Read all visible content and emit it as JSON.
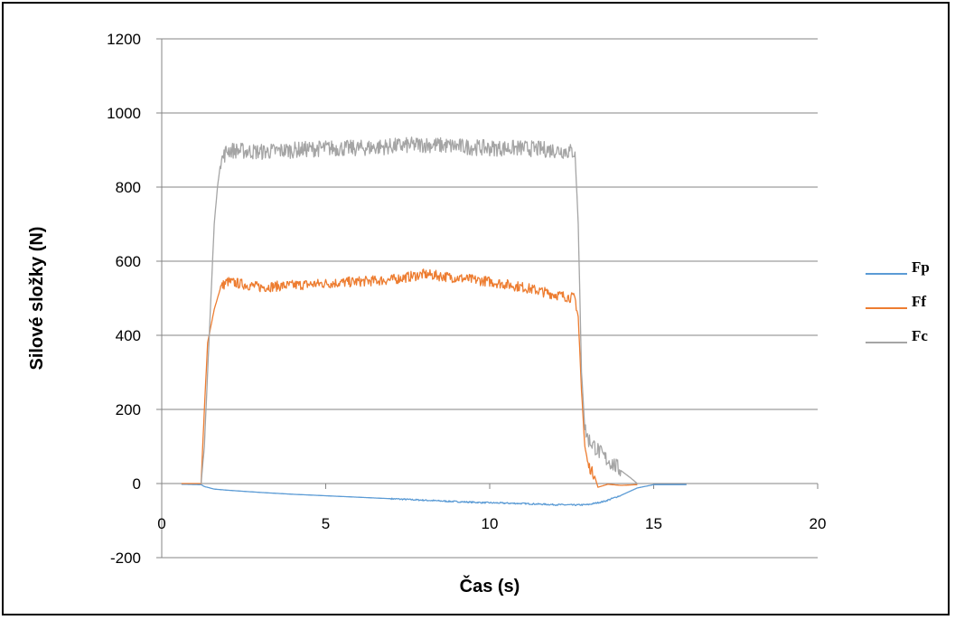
{
  "chart_data": {
    "type": "line",
    "xlabel": "Čas (s)",
    "ylabel": "Silové složky (N)",
    "xlim": [
      0,
      20
    ],
    "ylim": [
      -200,
      1200
    ],
    "x_ticks": [
      0,
      5,
      10,
      15,
      20
    ],
    "y_ticks": [
      -200,
      0,
      200,
      400,
      600,
      800,
      1000,
      1200
    ],
    "x_tick_labels": [
      "0",
      "5",
      "10",
      "15",
      "20"
    ],
    "y_tick_labels": [
      "-200",
      "0",
      "200",
      "400",
      "600",
      "800",
      "1000",
      "1200"
    ],
    "grid": "horizontal",
    "legend_position": "right",
    "series": [
      {
        "name": "Fp",
        "color": "#5b9bd5",
        "noise": 2,
        "points": [
          [
            0.6,
            -2
          ],
          [
            1.2,
            -3
          ],
          [
            1.3,
            -8
          ],
          [
            1.6,
            -15
          ],
          [
            2,
            -18
          ],
          [
            3,
            -24
          ],
          [
            4,
            -29
          ],
          [
            5,
            -33
          ],
          [
            6,
            -37
          ],
          [
            7,
            -41
          ],
          [
            8,
            -45
          ],
          [
            9,
            -49
          ],
          [
            10,
            -52
          ],
          [
            11,
            -54
          ],
          [
            12,
            -57
          ],
          [
            12.6,
            -58
          ],
          [
            13,
            -57
          ],
          [
            13.5,
            -48
          ],
          [
            14,
            -32
          ],
          [
            14.5,
            -12
          ],
          [
            15,
            -3
          ],
          [
            16,
            -3
          ]
        ]
      },
      {
        "name": "Ff",
        "color": "#ed7d31",
        "noise": 14,
        "points": [
          [
            0.6,
            0
          ],
          [
            1.2,
            0
          ],
          [
            1.3,
            200
          ],
          [
            1.4,
            380
          ],
          [
            1.6,
            470
          ],
          [
            1.8,
            530
          ],
          [
            2,
            545
          ],
          [
            3,
            530
          ],
          [
            4,
            535
          ],
          [
            5,
            540
          ],
          [
            6,
            545
          ],
          [
            7,
            550
          ],
          [
            8,
            565
          ],
          [
            9,
            555
          ],
          [
            10,
            545
          ],
          [
            11,
            530
          ],
          [
            12,
            510
          ],
          [
            12.6,
            500
          ],
          [
            12.7,
            450
          ],
          [
            12.8,
            250
          ],
          [
            12.9,
            100
          ],
          [
            13,
            50
          ],
          [
            13.2,
            20
          ],
          [
            13.3,
            -10
          ],
          [
            13.6,
            -2
          ],
          [
            14,
            -5
          ],
          [
            14.5,
            -3
          ]
        ]
      },
      {
        "name": "Fc",
        "color": "#a5a5a5",
        "noise": 22,
        "points": [
          [
            1.2,
            0
          ],
          [
            1.3,
            100
          ],
          [
            1.4,
            300
          ],
          [
            1.5,
            500
          ],
          [
            1.6,
            700
          ],
          [
            1.7,
            800
          ],
          [
            1.8,
            870
          ],
          [
            2,
            900
          ],
          [
            3,
            895
          ],
          [
            4,
            900
          ],
          [
            5,
            905
          ],
          [
            6,
            905
          ],
          [
            7,
            910
          ],
          [
            8,
            915
          ],
          [
            9,
            910
          ],
          [
            10,
            905
          ],
          [
            11,
            905
          ],
          [
            12,
            900
          ],
          [
            12.6,
            895
          ],
          [
            12.7,
            700
          ],
          [
            12.8,
            300
          ],
          [
            12.9,
            150
          ],
          [
            13,
            120
          ],
          [
            13.2,
            100
          ],
          [
            13.5,
            70
          ],
          [
            13.8,
            50
          ],
          [
            14,
            35
          ],
          [
            14.3,
            15
          ],
          [
            14.5,
            0
          ]
        ]
      }
    ]
  }
}
